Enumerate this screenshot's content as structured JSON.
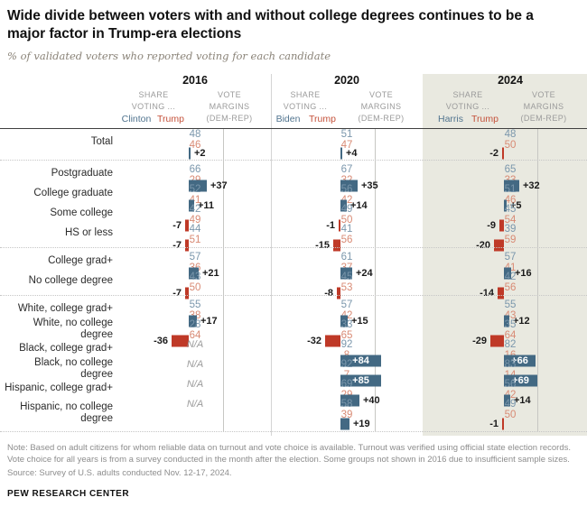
{
  "title": "Wide divide between voters with and without college degrees continues to be a major factor in Trump-era elections",
  "subtitle": "% of validated voters who reported voting for each candidate",
  "na_label": "N/A",
  "note": "Note: Based on adult citizens for whom reliable data on turnout and vote choice is available. Turnout was verified using official state election records. Vote choice for all years is from a survey conducted in the month after the election. Some groups not shown in 2016 due to insufficient sample sizes.",
  "source": "Source: Survey of U.S. adults conducted Nov. 12-17, 2024.",
  "footer_brand": "PEW RESEARCH CENTER",
  "colors": {
    "dem_bar": "#436983",
    "rep_bar": "#bf3927",
    "dem_text": "#7b97ac",
    "rep_text": "#d88a74",
    "dem_name": "#51748f",
    "rep_name": "#c4513a",
    "panel_2024_bg": "#e9e9e0"
  },
  "sections": [
    {
      "year": "2016",
      "share_line1": "SHARE",
      "share_line2": "VOTING ...",
      "dem_name": "Clinton",
      "rep_name": "Trump",
      "margin_line1": "VOTE",
      "margin_line2": "MARGINS",
      "margin_line3": "(DEM-REP)"
    },
    {
      "year": "2020",
      "share_line1": "SHARE",
      "share_line2": "VOTING ...",
      "dem_name": "Biden",
      "rep_name": "Trump",
      "margin_line1": "VOTE",
      "margin_line2": "MARGINS",
      "margin_line3": "(DEM-REP)"
    },
    {
      "year": "2024",
      "share_line1": "SHARE",
      "share_line2": "VOTING ...",
      "dem_name": "Harris",
      "rep_name": "Trump",
      "margin_line1": "VOTE",
      "margin_line2": "MARGINS",
      "margin_line3": "(DEM-REP)"
    }
  ],
  "groups": [
    [
      0
    ],
    [
      1,
      2,
      3,
      4
    ],
    [
      5,
      6
    ],
    [
      7,
      8,
      9,
      10,
      11,
      12
    ]
  ],
  "rows": [
    {
      "label": "Total",
      "total": true,
      "cells": [
        {
          "dem": 48,
          "rep": 46,
          "margin": 2
        },
        {
          "dem": 51,
          "rep": 47,
          "margin": 4
        },
        {
          "dem": 48,
          "rep": 50,
          "margin": -2
        }
      ]
    },
    {
      "label": "Postgraduate",
      "cells": [
        {
          "dem": 66,
          "rep": 29,
          "margin": 37
        },
        {
          "dem": 67,
          "rep": 32,
          "margin": 35
        },
        {
          "dem": 65,
          "rep": 33,
          "margin": 32
        }
      ]
    },
    {
      "label": "College graduate",
      "cells": [
        {
          "dem": 52,
          "rep": 41,
          "margin": 11
        },
        {
          "dem": 56,
          "rep": 42,
          "margin": 14
        },
        {
          "dem": 51,
          "rep": 46,
          "margin": 5
        }
      ]
    },
    {
      "label": "Some college",
      "cells": [
        {
          "dem": 42,
          "rep": 49,
          "margin": -7
        },
        {
          "dem": 49,
          "rep": 50,
          "margin": -1
        },
        {
          "dem": 45,
          "rep": 54,
          "margin": -9
        }
      ]
    },
    {
      "label": "HS or less",
      "cells": [
        {
          "dem": 44,
          "rep": 51,
          "margin": -7
        },
        {
          "dem": 41,
          "rep": 56,
          "margin": -15
        },
        {
          "dem": 39,
          "rep": 59,
          "margin": -20
        }
      ]
    },
    {
      "label": "College grad+",
      "cells": [
        {
          "dem": 57,
          "rep": 36,
          "margin": 21
        },
        {
          "dem": 61,
          "rep": 37,
          "margin": 24
        },
        {
          "dem": 57,
          "rep": 41,
          "margin": 16
        }
      ]
    },
    {
      "label": "No college degree",
      "cells": [
        {
          "dem": 43,
          "rep": 50,
          "margin": -7
        },
        {
          "dem": 45,
          "rep": 53,
          "margin": -8
        },
        {
          "dem": 42,
          "rep": 56,
          "margin": -14
        }
      ]
    },
    {
      "label": "White, college grad+",
      "cells": [
        {
          "dem": 55,
          "rep": 38,
          "margin": 17
        },
        {
          "dem": 57,
          "rep": 42,
          "margin": 15
        },
        {
          "dem": 55,
          "rep": 43,
          "margin": 12
        }
      ]
    },
    {
      "label": "White, no college degree",
      "cells": [
        {
          "dem": 28,
          "rep": 64,
          "margin": -36
        },
        {
          "dem": 33,
          "rep": 65,
          "margin": -32
        },
        {
          "dem": 35,
          "rep": 64,
          "margin": -29
        }
      ]
    },
    {
      "label": "Black, college grad+",
      "cells": [
        null,
        {
          "dem": 92,
          "rep": 8,
          "margin": 84
        },
        {
          "dem": 82,
          "rep": 16,
          "margin": 66
        }
      ]
    },
    {
      "label": "Black, no college degree",
      "cells": [
        null,
        {
          "dem": 92,
          "rep": 7,
          "margin": 85
        },
        {
          "dem": 83,
          "rep": 14,
          "margin": 69
        }
      ]
    },
    {
      "label": "Hispanic, college grad+",
      "cells": [
        null,
        {
          "dem": 69,
          "rep": 29,
          "margin": 40
        },
        {
          "dem": 56,
          "rep": 42,
          "margin": 14
        }
      ]
    },
    {
      "label": "Hispanic, no college degree",
      "tall": true,
      "cells": [
        null,
        {
          "dem": 58,
          "rep": 39,
          "margin": 19
        },
        {
          "dem": 49,
          "rep": 50,
          "margin": -1
        }
      ]
    }
  ],
  "chart_data": {
    "type": "bar",
    "title": "Wide divide between voters with and without college degrees continues to be a major factor in Trump-era elections",
    "subtitle": "% of validated voters who reported voting for each candidate",
    "categories": [
      "Total",
      "Postgraduate",
      "College graduate",
      "Some college",
      "HS or less",
      "College grad+",
      "No college degree",
      "White, college grad+",
      "White, no college degree",
      "Black, college grad+",
      "Black, no college degree",
      "Hispanic, college grad+",
      "Hispanic, no college degree"
    ],
    "series": [
      {
        "year": "2016",
        "dem_candidate": "Clinton",
        "rep_candidate": "Trump",
        "dem_share": [
          48,
          66,
          52,
          42,
          44,
          57,
          43,
          55,
          28,
          null,
          null,
          null,
          null
        ],
        "rep_share": [
          46,
          29,
          41,
          49,
          51,
          36,
          50,
          38,
          64,
          null,
          null,
          null,
          null
        ],
        "margin_dem_minus_rep": [
          2,
          37,
          11,
          -7,
          -7,
          21,
          -7,
          17,
          -36,
          null,
          null,
          null,
          null
        ]
      },
      {
        "year": "2020",
        "dem_candidate": "Biden",
        "rep_candidate": "Trump",
        "dem_share": [
          51,
          67,
          56,
          49,
          41,
          61,
          45,
          57,
          33,
          92,
          92,
          69,
          58
        ],
        "rep_share": [
          47,
          32,
          42,
          50,
          56,
          37,
          53,
          42,
          65,
          8,
          7,
          29,
          39
        ],
        "margin_dem_minus_rep": [
          4,
          35,
          14,
          -1,
          -15,
          24,
          -8,
          15,
          -32,
          84,
          85,
          40,
          19
        ]
      },
      {
        "year": "2024",
        "dem_candidate": "Harris",
        "rep_candidate": "Trump",
        "dem_share": [
          48,
          65,
          51,
          45,
          39,
          57,
          42,
          55,
          35,
          82,
          83,
          56,
          49
        ],
        "rep_share": [
          50,
          33,
          46,
          54,
          59,
          41,
          56,
          43,
          64,
          16,
          14,
          42,
          50
        ],
        "margin_dem_minus_rep": [
          -2,
          32,
          5,
          -9,
          -20,
          16,
          -14,
          12,
          -29,
          66,
          69,
          14,
          -1
        ]
      }
    ],
    "margin_axis_label": "(DEM-REP)",
    "xlim_margin": [
      -40,
      90
    ],
    "grid": false,
    "legend_position": "none",
    "highlighted_section": "2024"
  }
}
